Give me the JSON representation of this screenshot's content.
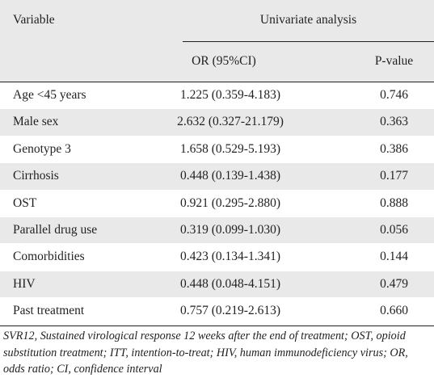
{
  "header": {
    "variable": "Variable",
    "group": "Univariate analysis",
    "or_ci": "OR (95%CI)",
    "p_value": "P-value"
  },
  "rows": [
    {
      "variable": "Age <45 years",
      "or_ci": "1.225 (0.359-4.183)",
      "p": "0.746"
    },
    {
      "variable": "Male sex",
      "or_ci": "2.632 (0.327-21.179)",
      "p": "0.363"
    },
    {
      "variable": "Genotype 3",
      "or_ci": "1.658 (0.529-5.193)",
      "p": "0.386"
    },
    {
      "variable": "Cirrhosis",
      "or_ci": "0.448 (0.139-1.438)",
      "p": "0.177"
    },
    {
      "variable": "OST",
      "or_ci": "0.921 (0.295-2.880)",
      "p": "0.888"
    },
    {
      "variable": "Parallel drug use",
      "or_ci": "0.319 (0.099-1.030)",
      "p": "0.056"
    },
    {
      "variable": "Comorbidities",
      "or_ci": "0.423 (0.134-1.341)",
      "p": "0.144"
    },
    {
      "variable": "HIV",
      "or_ci": "0.448 (0.048-4.151)",
      "p": "0.479"
    },
    {
      "variable": "Past treatment",
      "or_ci": "0.757 (0.219-2.613)",
      "p": "0.660"
    }
  ],
  "footnote": "SVR12, Sustained virological response 12 weeks after the end of treatment; OST, opioid substitution treatment; ITT, intention-to-treat; HIV, human immunodeficiency virus; OR, odds ratio; CI, confidence interval",
  "colors": {
    "header_bg": "#e9e9ea",
    "stripe_bg": "#e9e9ea",
    "text": "#231f20"
  }
}
